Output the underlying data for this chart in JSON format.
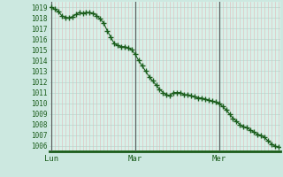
{
  "bg_color": "#cce8e0",
  "plot_bg_color": "#d8f0e8",
  "grid_h_color": "#b8d8d0",
  "grid_v_color": "#e0b8b8",
  "line_color": "#1a5c1a",
  "marker_color": "#1a5c1a",
  "vline_color": "#606060",
  "axis_label_color": "#1a5c1a",
  "bottom_bar_color": "#1a5c1a",
  "ylim": [
    1005.5,
    1019.5
  ],
  "yticks": [
    1006,
    1007,
    1008,
    1009,
    1010,
    1011,
    1012,
    1013,
    1014,
    1015,
    1016,
    1017,
    1018,
    1019
  ],
  "xtick_labels": [
    "Lun",
    "Mar",
    "Mer"
  ],
  "xtick_positions": [
    0,
    24,
    48
  ],
  "vline_positions": [
    0,
    24,
    48
  ],
  "n_points": 66,
  "data_y": [
    1019.0,
    1018.8,
    1018.6,
    1018.2,
    1018.05,
    1018.0,
    1018.1,
    1018.3,
    1018.5,
    1018.4,
    1018.5,
    1018.5,
    1018.4,
    1018.2,
    1017.9,
    1017.5,
    1016.8,
    1016.2,
    1015.6,
    1015.4,
    1015.3,
    1015.3,
    1015.2,
    1015.0,
    1014.6,
    1014.0,
    1013.5,
    1013.0,
    1012.5,
    1012.1,
    1011.7,
    1011.3,
    1011.0,
    1010.8,
    1010.7,
    1011.0,
    1011.0,
    1011.0,
    1010.8,
    1010.8,
    1010.7,
    1010.6,
    1010.5,
    1010.5,
    1010.4,
    1010.3,
    1010.2,
    1010.1,
    1010.0,
    1009.7,
    1009.4,
    1009.0,
    1008.6,
    1008.3,
    1008.0,
    1007.8,
    1007.7,
    1007.5,
    1007.3,
    1007.1,
    1007.0,
    1006.8,
    1006.5,
    1006.2,
    1006.0,
    1005.9
  ]
}
